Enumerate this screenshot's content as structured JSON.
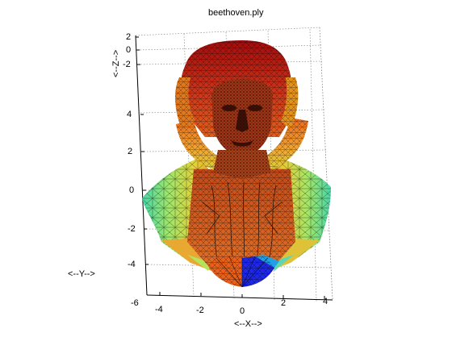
{
  "figure": {
    "title": "beethoven.ply",
    "x_axis_label": "<--X-->",
    "y_axis_label": "<--Y-->",
    "z_axis_label": "<--Z-->",
    "x_ticks": [
      "-4",
      "-2",
      "0",
      "2",
      "4"
    ],
    "y_ticks": [
      "4",
      "2",
      "0",
      "-2",
      "-4",
      "-6"
    ],
    "z_ticks": [
      "2",
      "0",
      "-2"
    ]
  },
  "colors": {
    "head_top": "#b41414",
    "face": "#c8501e",
    "upper_ring": "#e88a2a",
    "shoulder_mid": "#e6d23a",
    "shoulder_edge": "#48d6a8",
    "chest": "#d8642a",
    "base_right": "#1e28e6",
    "grid": "#8c8c8c",
    "wire": "#000000"
  }
}
